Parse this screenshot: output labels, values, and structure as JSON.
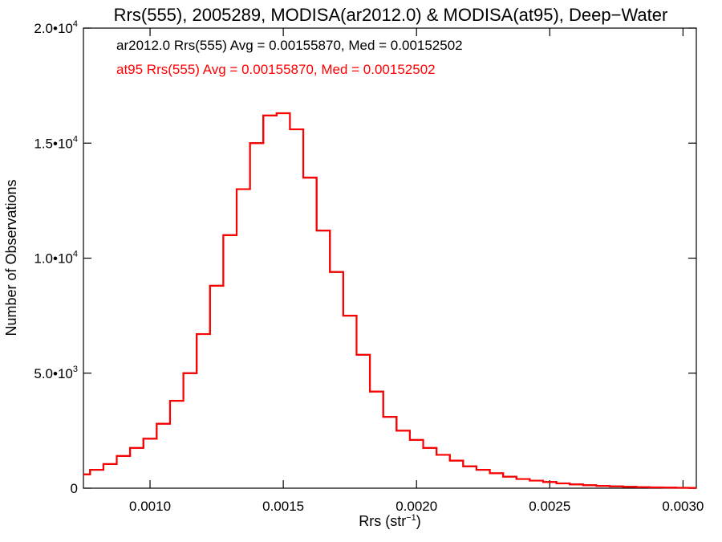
{
  "chart_data": {
    "type": "line",
    "title": "Rrs(555), 2005289, MODISA(ar2012.0) & MODISA(at95), Deep−Water",
    "xlabel_base": "Rrs (str",
    "xlabel_exp": "−1",
    "xlabel_tail": ")",
    "ylabel": "Number of Observations",
    "xlim": [
      0.00075,
      0.00305
    ],
    "ylim": [
      0,
      20000
    ],
    "x_ticks": [
      {
        "value": 0.001,
        "label": "0.0010"
      },
      {
        "value": 0.0015,
        "label": "0.0015"
      },
      {
        "value": 0.002,
        "label": "0.0020"
      },
      {
        "value": 0.0025,
        "label": "0.0025"
      },
      {
        "value": 0.003,
        "label": "0.0030"
      }
    ],
    "y_ticks": [
      {
        "value": 0,
        "base": "0",
        "exp": ""
      },
      {
        "value": 5000,
        "base": "5.0•10",
        "exp": "3"
      },
      {
        "value": 10000,
        "base": "1.0•10",
        "exp": "4"
      },
      {
        "value": 15000,
        "base": "1.5•10",
        "exp": "4"
      },
      {
        "value": 20000,
        "base": "2.0•10",
        "exp": "4"
      }
    ],
    "legend": [
      {
        "text": "ar2012.0 Rrs(555) Avg = 0.00155870, Med = 0.00152502",
        "color": "#000000"
      },
      {
        "text": "at95 Rrs(555) Avg = 0.00155870, Med = 0.00152502",
        "color": "#ff0000"
      }
    ],
    "series": [
      {
        "name": "ar2012.0",
        "color": "#000000",
        "x": [
          0.00075,
          0.0008,
          0.00085,
          0.0009,
          0.00095,
          0.001,
          0.00105,
          0.0011,
          0.00115,
          0.0012,
          0.00125,
          0.0013,
          0.00135,
          0.0014,
          0.00145,
          0.0015,
          0.00155,
          0.0016,
          0.00165,
          0.0017,
          0.00175,
          0.0018,
          0.00185,
          0.0019,
          0.00195,
          0.002,
          0.00205,
          0.0021,
          0.00215,
          0.0022,
          0.00225,
          0.0023,
          0.00235,
          0.0024,
          0.00245,
          0.0025,
          0.00255,
          0.0026,
          0.00265,
          0.0027,
          0.00275,
          0.0028,
          0.00285,
          0.0029,
          0.00295,
          0.003,
          0.00305
        ],
        "y": [
          600,
          800,
          1050,
          1400,
          1750,
          2150,
          2800,
          3800,
          5000,
          6700,
          8800,
          11000,
          13000,
          15000,
          16200,
          16300,
          15600,
          13500,
          11200,
          9400,
          7500,
          5800,
          4200,
          3100,
          2500,
          2100,
          1750,
          1450,
          1200,
          950,
          800,
          650,
          500,
          400,
          330,
          270,
          210,
          165,
          130,
          100,
          80,
          60,
          45,
          35,
          25,
          18,
          12
        ]
      },
      {
        "name": "at95",
        "color": "#ff0000",
        "x": [
          0.00075,
          0.0008,
          0.00085,
          0.0009,
          0.00095,
          0.001,
          0.00105,
          0.0011,
          0.00115,
          0.0012,
          0.00125,
          0.0013,
          0.00135,
          0.0014,
          0.00145,
          0.0015,
          0.00155,
          0.0016,
          0.00165,
          0.0017,
          0.00175,
          0.0018,
          0.00185,
          0.0019,
          0.00195,
          0.002,
          0.00205,
          0.0021,
          0.00215,
          0.0022,
          0.00225,
          0.0023,
          0.00235,
          0.0024,
          0.00245,
          0.0025,
          0.00255,
          0.0026,
          0.00265,
          0.0027,
          0.00275,
          0.0028,
          0.00285,
          0.0029,
          0.00295,
          0.003,
          0.00305
        ],
        "y": [
          600,
          800,
          1050,
          1400,
          1750,
          2150,
          2800,
          3800,
          5000,
          6700,
          8800,
          11000,
          13000,
          15000,
          16200,
          16300,
          15600,
          13500,
          11200,
          9400,
          7500,
          5800,
          4200,
          3100,
          2500,
          2100,
          1750,
          1450,
          1200,
          950,
          800,
          650,
          500,
          400,
          330,
          270,
          210,
          165,
          130,
          100,
          80,
          60,
          45,
          35,
          25,
          18,
          12
        ]
      }
    ],
    "grid": false,
    "legend_position": "top-left inside"
  }
}
